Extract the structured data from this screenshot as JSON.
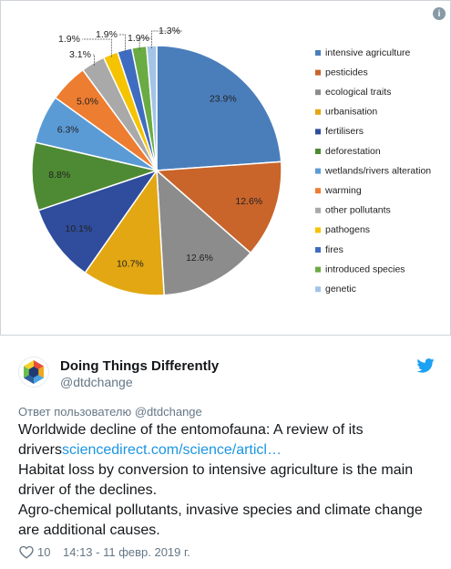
{
  "chart_data": {
    "type": "pie",
    "categories": [
      "intensive agriculture",
      "pesticides",
      "ecological traits",
      "urbanisation",
      "fertilisers",
      "deforestation",
      "wetlands/rivers alteration",
      "warming",
      "other pollutants",
      "pathogens",
      "fires",
      "introduced species",
      "genetic"
    ],
    "values": [
      23.9,
      12.6,
      12.6,
      10.7,
      10.1,
      8.8,
      6.3,
      5.0,
      3.1,
      1.9,
      1.9,
      1.9,
      1.3
    ],
    "value_labels": [
      "23.9%",
      "12.6%",
      "12.6%",
      "10.7%",
      "10.1%",
      "8.8%",
      "6.3%",
      "5.0%",
      "3.1%",
      "1.9%",
      "1.9%",
      "1.9%",
      "1.3%"
    ],
    "colors": [
      "#4a7ebb",
      "#c9642a",
      "#8c8c8c",
      "#e2a712",
      "#2f4d9c",
      "#4e8a34",
      "#5b9bd5",
      "#ed7d31",
      "#a9a9a9",
      "#f5c300",
      "#3e6cc0",
      "#6aab43",
      "#a3c4e6"
    ],
    "legend": "right"
  },
  "tweet": {
    "name": "Doing Things Differently",
    "handle": "@dtdchange",
    "reply_to": "Ответ пользователю @dtdchange",
    "text": [
      "Worldwide decline of the entomofauna: A review of its drivers",
      "Habitat loss by conversion to intensive agriculture is the main driver of the declines.",
      "Agro-chemical pollutants, invasive species and climate change are additional causes."
    ],
    "link": "sciencedirect.com/science/articl…",
    "likes": 10,
    "timestamp": "14:13 - 11 февр. 2019 г."
  }
}
